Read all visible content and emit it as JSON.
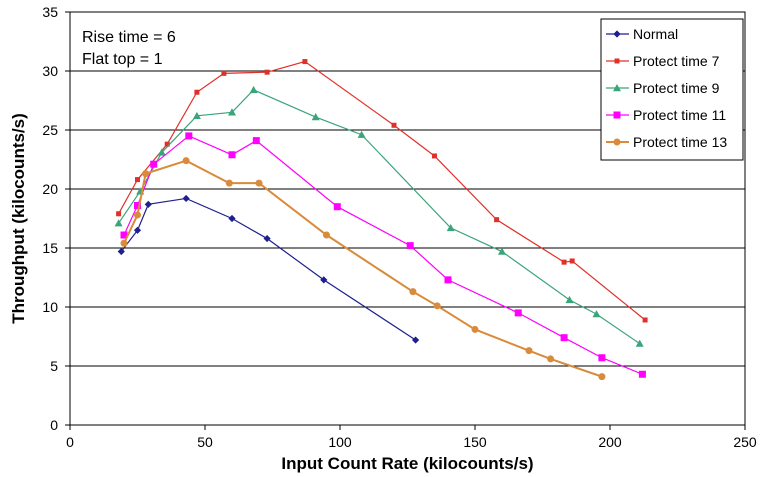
{
  "chart_data": {
    "type": "line",
    "title": "",
    "xlabel": "Input Count Rate (kilocounts/s)",
    "ylabel": "Throughput (kilocounts/s)",
    "xlim": [
      0,
      250
    ],
    "ylim": [
      0,
      35
    ],
    "xticks": [
      0,
      50,
      100,
      150,
      200,
      250
    ],
    "yticks": [
      0,
      5,
      10,
      15,
      20,
      25,
      30,
      35
    ],
    "grid": "horizontal",
    "legend_position": "top-right",
    "annotations": [
      "Rise time = 6",
      "Flat top = 1"
    ],
    "series": [
      {
        "name": "Normal",
        "color": "#1f1f8f",
        "marker": "diamond",
        "x": [
          19,
          25,
          29,
          43,
          60,
          73,
          94,
          128
        ],
        "y": [
          14.7,
          16.5,
          18.7,
          19.2,
          17.5,
          15.8,
          12.3,
          7.2
        ]
      },
      {
        "name": "Protect time 7",
        "color": "#e0302a",
        "marker": "square-small",
        "x": [
          18,
          25,
          36,
          47,
          57,
          73,
          87,
          120,
          135,
          158,
          183,
          186,
          213
        ],
        "y": [
          17.9,
          20.8,
          23.8,
          28.2,
          29.8,
          29.9,
          30.8,
          25.4,
          22.8,
          17.4,
          13.8,
          13.9,
          8.9
        ]
      },
      {
        "name": "Protect time 9",
        "color": "#3aa57a",
        "marker": "triangle",
        "x": [
          18,
          26,
          34,
          47,
          60,
          68,
          91,
          108,
          141,
          160,
          185,
          195,
          211
        ],
        "y": [
          17.1,
          19.8,
          23.1,
          26.2,
          26.5,
          28.4,
          26.1,
          24.6,
          16.7,
          14.7,
          10.6,
          9.4,
          6.9
        ]
      },
      {
        "name": "Protect time 11",
        "color": "#ff00ff",
        "marker": "square",
        "x": [
          20,
          25,
          31,
          44,
          60,
          69,
          99,
          126,
          140,
          166,
          183,
          197,
          212
        ],
        "y": [
          16.1,
          18.6,
          22.1,
          24.5,
          22.9,
          24.1,
          18.5,
          15.2,
          12.3,
          9.5,
          7.4,
          5.7,
          4.3
        ]
      },
      {
        "name": "Protect time 13",
        "color": "#d98a3a",
        "marker": "circle",
        "x": [
          20,
          25,
          28,
          43,
          59,
          70,
          95,
          127,
          136,
          150,
          170,
          178,
          197
        ],
        "y": [
          15.4,
          17.8,
          21.3,
          22.4,
          20.5,
          20.5,
          16.1,
          11.3,
          10.1,
          8.1,
          6.3,
          5.6,
          4.1
        ]
      }
    ]
  }
}
